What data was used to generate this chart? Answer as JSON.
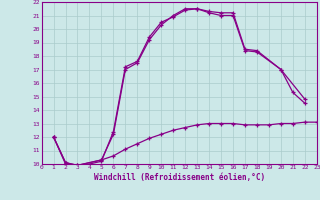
{
  "xlabel": "Windchill (Refroidissement éolien,°C)",
  "bg_color": "#cce8e8",
  "line_color": "#880088",
  "grid_color": "#aacccc",
  "xmin": 0,
  "xmax": 23,
  "ymin": 10,
  "ymax": 22,
  "series": [
    {
      "x": [
        1,
        2,
        3,
        5,
        6,
        7,
        8,
        9,
        10,
        11,
        12,
        13,
        14,
        15,
        16,
        17,
        18,
        20,
        22
      ],
      "y": [
        12,
        10,
        9.8,
        10.2,
        12.4,
        17.2,
        17.6,
        19.4,
        20.5,
        20.9,
        21.4,
        21.5,
        21.3,
        21.2,
        21.2,
        18.5,
        18.4,
        17.0,
        14.8
      ]
    },
    {
      "x": [
        1,
        2,
        3,
        5,
        6,
        7,
        8,
        9,
        10,
        11,
        12,
        13,
        14,
        15,
        16,
        17,
        18,
        19,
        20,
        21,
        22,
        23
      ],
      "y": [
        12,
        10.1,
        9.9,
        10.3,
        10.6,
        11.1,
        11.5,
        11.9,
        12.2,
        12.5,
        12.7,
        12.9,
        13.0,
        13.0,
        13.0,
        12.9,
        12.9,
        12.9,
        13.0,
        13.0,
        13.1,
        13.1
      ]
    },
    {
      "x": [
        1,
        2,
        3,
        5,
        6,
        7,
        8,
        9,
        10,
        11,
        12,
        13,
        14,
        15,
        16,
        17,
        18,
        20,
        21,
        22
      ],
      "y": [
        12,
        10.1,
        9.9,
        10.3,
        12.2,
        17.0,
        17.5,
        19.2,
        20.3,
        21.0,
        21.5,
        21.5,
        21.2,
        21.0,
        21.0,
        18.4,
        18.3,
        17.0,
        15.3,
        14.5
      ]
    }
  ]
}
